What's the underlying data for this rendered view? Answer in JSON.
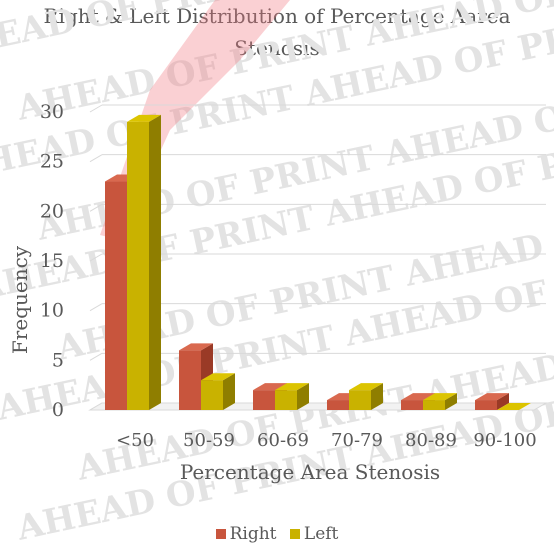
{
  "chart_data": {
    "type": "bar",
    "title": "Right & Left Distribution of Percentage Aarea Stenosis",
    "title_lines": [
      "Right & Left Distribution of Percentage Aarea",
      "Stenosis"
    ],
    "xlabel": "Percentage Area Stenosis",
    "ylabel": "Frequency",
    "categories": [
      "<50",
      "50-59",
      "60-69",
      "70-79",
      "80-89",
      "90-100"
    ],
    "series": [
      {
        "name": "Right",
        "values": [
          23,
          6,
          2,
          1,
          1,
          1
        ],
        "color": "#C8553D",
        "top_color": "#D9694F",
        "side_color": "#9A3A26"
      },
      {
        "name": "Left",
        "values": [
          29,
          3,
          2,
          2,
          1,
          0
        ],
        "color": "#C9B200",
        "top_color": "#DCC400",
        "side_color": "#8F7E00"
      }
    ],
    "ylim": [
      0,
      30
    ],
    "yticks": [
      0,
      5,
      10,
      15,
      20,
      25,
      30
    ],
    "grid": true,
    "legend_position": "bottom",
    "watermark": "AHEAD OF PRINT"
  }
}
